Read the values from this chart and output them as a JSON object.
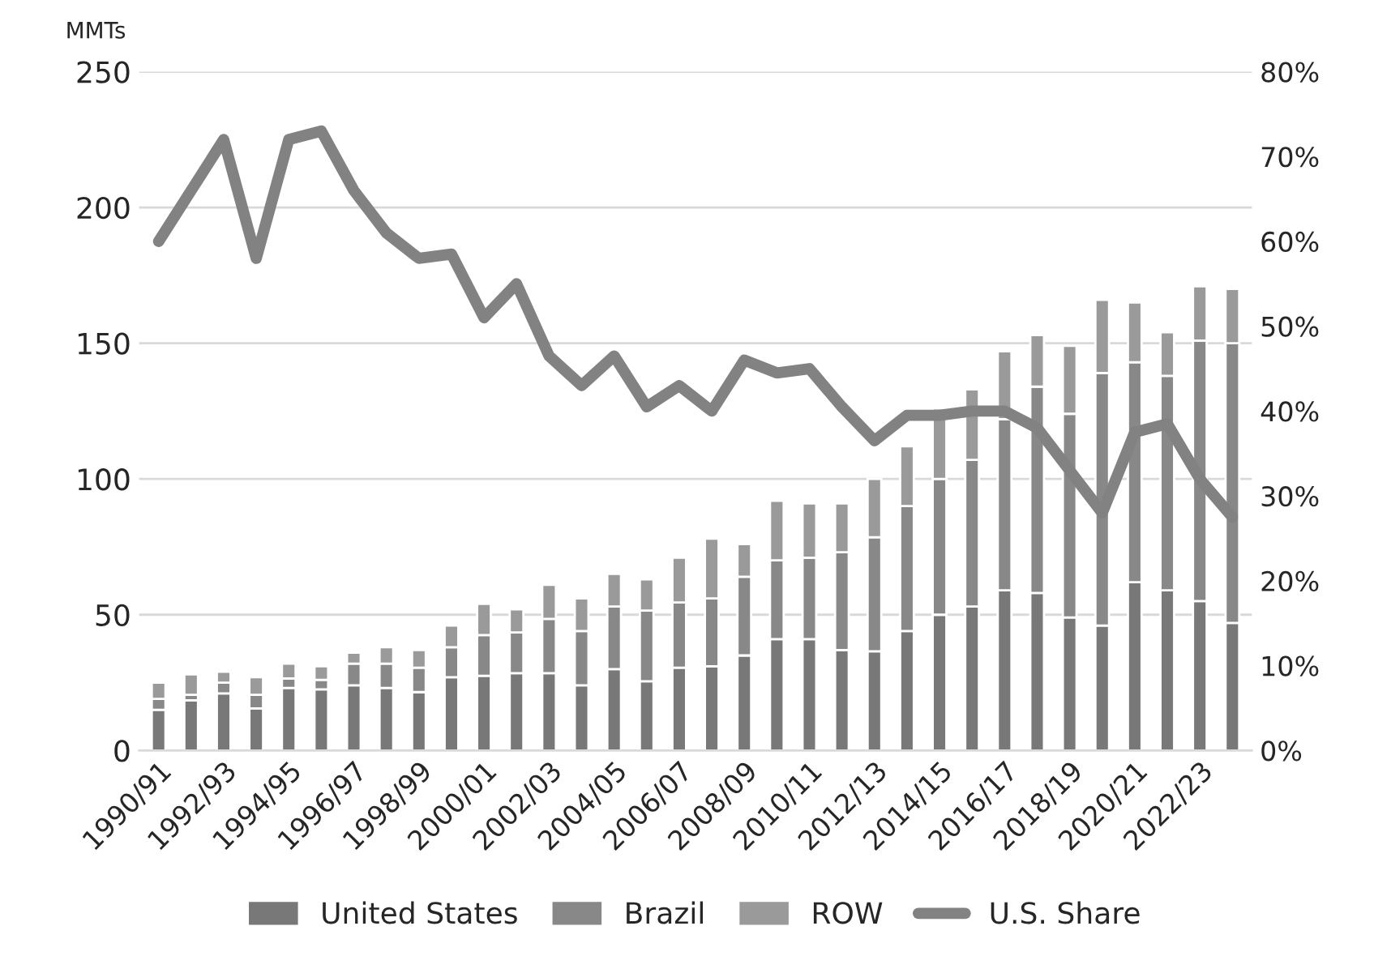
{
  "chart_data": {
    "type": "bar",
    "stacked": true,
    "ylabel": "MMTs",
    "categories": [
      "1990/91",
      null,
      "1992/93",
      null,
      "1994/95",
      null,
      "1996/97",
      null,
      "1998/99",
      null,
      "2000/01",
      null,
      "2002/03",
      null,
      "2004/05",
      null,
      "2006/07",
      null,
      "2008/09",
      null,
      "2010/11",
      null,
      "2012/13",
      null,
      "2014/15",
      null,
      "2016/17",
      null,
      "2018/19",
      null,
      "2020/21",
      null,
      "2022/23",
      null
    ],
    "series": [
      {
        "name": "United States",
        "color": "#787878",
        "values": [
          15,
          18.5,
          21,
          15.5,
          23,
          22.5,
          24,
          23,
          21.5,
          27,
          27.5,
          28.5,
          28.5,
          24,
          30,
          25.5,
          30.5,
          31,
          35,
          41,
          41,
          37,
          36.5,
          44,
          50,
          53,
          59,
          58,
          49,
          46,
          62,
          59,
          55,
          47
        ]
      },
      {
        "name": "Brazil",
        "color": "#888888",
        "values": [
          4,
          2,
          4,
          5,
          3.5,
          3.5,
          8,
          9,
          9,
          11,
          15,
          15,
          20,
          20,
          23,
          26,
          24,
          25,
          29,
          29,
          30,
          36,
          42,
          46,
          50,
          54,
          63,
          76,
          75,
          93,
          81,
          79,
          96,
          103
        ]
      },
      {
        "name": "ROW",
        "color": "#9a9a9a",
        "values": [
          6,
          7.5,
          4,
          6.5,
          5.5,
          5,
          4,
          6,
          6.5,
          8,
          11.5,
          8.5,
          12.5,
          12,
          12,
          11.5,
          16.5,
          22,
          12,
          22,
          20,
          18,
          21.5,
          22,
          26,
          26,
          25,
          19,
          25,
          27,
          22,
          16,
          20,
          20
        ]
      },
      {
        "name": "U.S. Share",
        "type": "line",
        "axis": "y2",
        "color": "#828282",
        "values": [
          60,
          66,
          72,
          58,
          72,
          73,
          66,
          61,
          58,
          58.5,
          51,
          55,
          46.5,
          43,
          46.5,
          40.5,
          43,
          40,
          46,
          44.5,
          45,
          40.5,
          36.5,
          39.5,
          39.5,
          40,
          40,
          38,
          33,
          28,
          37.5,
          38.5,
          32,
          27.5
        ]
      }
    ],
    "ylim": [
      0,
      250
    ],
    "yticks": [
      0,
      50,
      100,
      150,
      200,
      250
    ],
    "y2lim": [
      0,
      80
    ],
    "y2ticks": [
      {
        "value": 0,
        "label": "0%"
      },
      {
        "value": 10,
        "label": "10%"
      },
      {
        "value": 20,
        "label": "20%"
      },
      {
        "value": 30,
        "label": "30%"
      },
      {
        "value": 40,
        "label": "40%"
      },
      {
        "value": 50,
        "label": "50%"
      },
      {
        "value": 60,
        "label": "60%"
      },
      {
        "value": 70,
        "label": "70%"
      },
      {
        "value": 80,
        "label": "80%"
      }
    ],
    "grid": "y",
    "legend": "bottom"
  }
}
